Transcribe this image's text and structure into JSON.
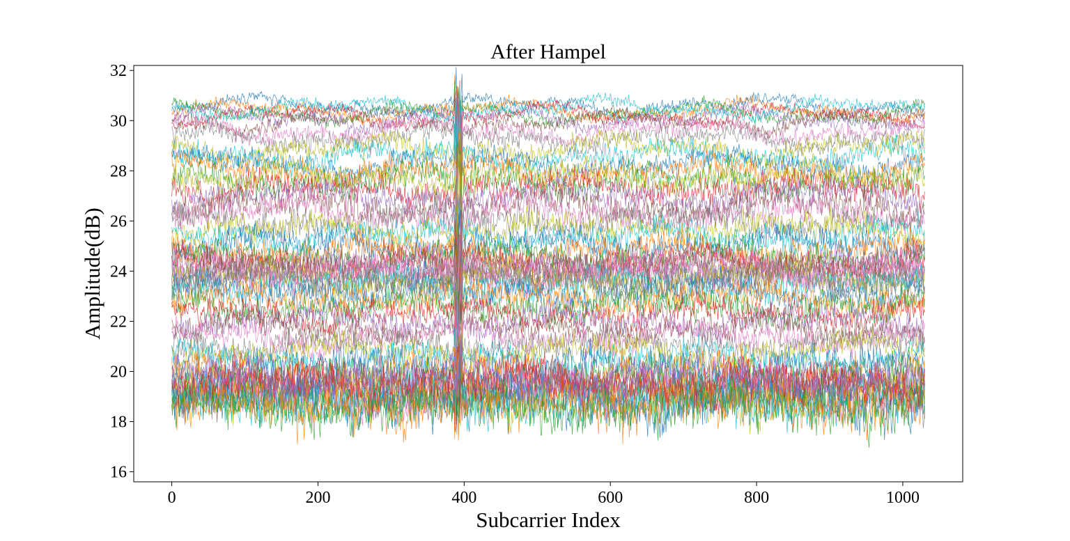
{
  "chart_data": {
    "type": "line",
    "title": "After Hampel",
    "xlabel": "Subcarrier Index",
    "ylabel": "Amplitude(dB)",
    "xlim": [
      -52,
      1082
    ],
    "ylim": [
      15.6,
      32.2
    ],
    "xticks": [
      0,
      200,
      400,
      600,
      800,
      1000
    ],
    "yticks": [
      16,
      18,
      20,
      22,
      24,
      26,
      28,
      30,
      32
    ],
    "x_range": [
      0,
      1030
    ],
    "grid": false,
    "legend": "none",
    "series_count": 60,
    "series_colors": [
      "#1f77b4",
      "#ff7f0e",
      "#2ca02c",
      "#d62728",
      "#9467bd",
      "#8c564b",
      "#e377c2",
      "#7f7f7f",
      "#bcbd22",
      "#17becf"
    ],
    "series_levels": [
      30.6,
      30.4,
      30.3,
      30.2,
      30.1,
      30.0,
      29.6,
      29.3,
      28.9,
      28.6,
      28.3,
      28.0,
      27.6,
      27.3,
      27.0,
      26.6,
      26.3,
      26.0,
      25.7,
      25.4,
      25.1,
      24.8,
      24.5,
      24.3,
      24.1,
      24.0,
      23.9,
      23.8,
      23.7,
      23.5,
      23.2,
      22.9,
      22.6,
      22.3,
      22.0,
      21.7,
      21.4,
      21.1,
      20.8,
      20.5,
      20.2,
      19.9,
      19.7,
      19.5,
      19.4,
      19.3,
      19.2,
      19.1,
      19.0,
      18.9,
      18.8,
      18.7,
      18.6,
      19.6,
      19.8,
      24.4,
      24.2,
      23.6,
      27.8,
      30.5
    ],
    "series_noise": [
      0.25,
      0.25,
      0.25,
      0.25,
      0.3,
      0.3,
      0.35,
      0.4,
      0.45,
      0.45,
      0.45,
      0.5,
      0.55,
      0.6,
      0.6,
      0.6,
      0.6,
      0.6,
      0.55,
      0.55,
      0.55,
      0.6,
      0.6,
      0.6,
      0.6,
      0.6,
      0.6,
      0.6,
      0.6,
      0.6,
      0.6,
      0.6,
      0.6,
      0.55,
      0.55,
      0.55,
      0.55,
      0.55,
      0.55,
      0.6,
      0.7,
      0.8,
      0.8,
      0.85,
      0.85,
      0.85,
      0.9,
      0.9,
      0.9,
      0.95,
      0.95,
      1.0,
      1.0,
      0.8,
      0.8,
      0.6,
      0.6,
      0.6,
      0.5,
      0.25
    ]
  }
}
